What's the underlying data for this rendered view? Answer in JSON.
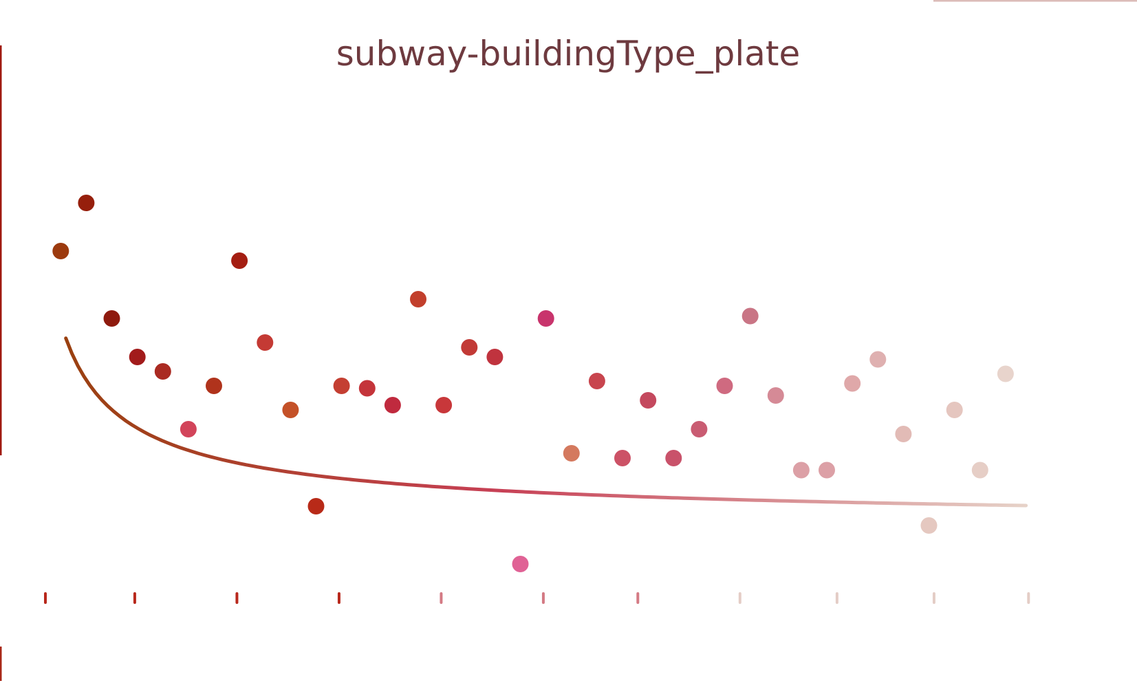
{
  "chart_data": {
    "type": "scatter",
    "title": "subway-buildingType_plate",
    "xlabel": "",
    "ylabel": "",
    "xlim": [
      0,
      40
    ],
    "ylim": [
      0,
      100
    ],
    "grid": false,
    "legend": "none",
    "x_ticks": [
      0,
      3.5,
      7.5,
      11.5,
      15.5,
      19.5,
      23.2,
      27.2,
      31,
      34.8,
      38.5
    ],
    "points": [
      {
        "x": 0.6,
        "y": 73,
        "color": "#9c3a0e"
      },
      {
        "x": 1.6,
        "y": 83,
        "color": "#961f0c"
      },
      {
        "x": 2.6,
        "y": 59,
        "color": "#8e1a0e"
      },
      {
        "x": 3.6,
        "y": 51,
        "color": "#a21b1b"
      },
      {
        "x": 4.6,
        "y": 48,
        "color": "#aa2a22"
      },
      {
        "x": 5.6,
        "y": 36,
        "color": "#d2445a"
      },
      {
        "x": 6.6,
        "y": 45,
        "color": "#b0331c"
      },
      {
        "x": 7.6,
        "y": 71,
        "color": "#a41e12"
      },
      {
        "x": 8.6,
        "y": 54,
        "color": "#c43a34"
      },
      {
        "x": 9.6,
        "y": 40,
        "color": "#c45128"
      },
      {
        "x": 10.6,
        "y": 20,
        "color": "#b82a18"
      },
      {
        "x": 11.6,
        "y": 45,
        "color": "#c43f32"
      },
      {
        "x": 12.6,
        "y": 44.5,
        "color": "#c4343a"
      },
      {
        "x": 13.6,
        "y": 41,
        "color": "#c02a3e"
      },
      {
        "x": 14.6,
        "y": 63,
        "color": "#c23f2c"
      },
      {
        "x": 15.6,
        "y": 41,
        "color": "#c8373a"
      },
      {
        "x": 16.6,
        "y": 53,
        "color": "#c23a36"
      },
      {
        "x": 17.6,
        "y": 51,
        "color": "#c0333e"
      },
      {
        "x": 18.6,
        "y": 8,
        "color": "#e06295"
      },
      {
        "x": 19.6,
        "y": 59,
        "color": "#c8346c"
      },
      {
        "x": 20.6,
        "y": 31,
        "color": "#d4795e"
      },
      {
        "x": 21.6,
        "y": 46,
        "color": "#c8454e"
      },
      {
        "x": 22.6,
        "y": 30,
        "color": "#cc5266"
      },
      {
        "x": 23.6,
        "y": 42,
        "color": "#c4495e"
      },
      {
        "x": 24.6,
        "y": 30,
        "color": "#c9526a"
      },
      {
        "x": 25.6,
        "y": 36,
        "color": "#c95c72"
      },
      {
        "x": 26.6,
        "y": 45,
        "color": "#cf6a80"
      },
      {
        "x": 27.6,
        "y": 59.5,
        "color": "#c97585"
      },
      {
        "x": 28.6,
        "y": 43,
        "color": "#d58a96"
      },
      {
        "x": 29.6,
        "y": 27.5,
        "color": "#dca0a6"
      },
      {
        "x": 30.6,
        "y": 27.5,
        "color": "#dca0a6"
      },
      {
        "x": 31.6,
        "y": 45.5,
        "color": "#dfa8a9"
      },
      {
        "x": 32.6,
        "y": 50.5,
        "color": "#dfb0b0"
      },
      {
        "x": 33.6,
        "y": 35,
        "color": "#e2bbb6"
      },
      {
        "x": 34.6,
        "y": 16,
        "color": "#e5c8c0"
      },
      {
        "x": 35.6,
        "y": 40,
        "color": "#e5c6bf"
      },
      {
        "x": 36.6,
        "y": 27.5,
        "color": "#e6cec6"
      },
      {
        "x": 37.6,
        "y": 47.5,
        "color": "#e8d4cc"
      }
    ],
    "trend": {
      "type": "curve",
      "x_start": 0.8,
      "x_end": 38.4,
      "a": 62.7,
      "b": 15.7,
      "c": 0.12,
      "color_start": "#9a4010",
      "color_mid": "#c74055",
      "color_end": "#e6d2c8"
    },
    "colors": {
      "axis_gradient": [
        "#8c1a10",
        "#c43a40",
        "#dc8a90",
        "#e8d6cc"
      ],
      "frame_left": "#a01a10",
      "frame_bottom": "#b83020",
      "frame_top_right": "#dcbcb8"
    }
  }
}
